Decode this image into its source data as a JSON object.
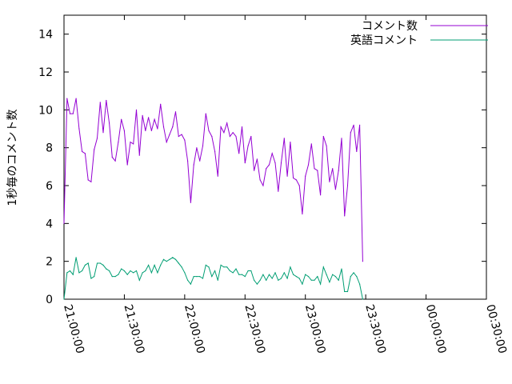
{
  "chart_data": {
    "type": "line",
    "title": "",
    "xlabel": "",
    "ylabel": "1秒毎のコメント数",
    "x_range": [
      "21:00:00",
      "00:30:00"
    ],
    "x_ticks": [
      "21:00:00",
      "21:30:00",
      "22:00:00",
      "22:30:00",
      "23:00:00",
      "23:30:00",
      "00:00:00",
      "00:30:00"
    ],
    "ylim": [
      0,
      15
    ],
    "y_ticks": [
      0,
      2,
      4,
      6,
      8,
      10,
      12,
      14
    ],
    "grid": false,
    "legend_position": "top-right",
    "series": [
      {
        "name": "コメント数",
        "color": "#9400d3",
        "points": [
          [
            "21:00:00",
            4.0
          ],
          [
            "21:01:30",
            10.6
          ],
          [
            "21:03:00",
            9.8
          ],
          [
            "21:04:30",
            9.8
          ],
          [
            "21:06:00",
            10.6
          ],
          [
            "21:07:30",
            9.0
          ],
          [
            "21:09:00",
            7.8
          ],
          [
            "21:10:30",
            7.7
          ],
          [
            "21:12:00",
            6.3
          ],
          [
            "21:13:30",
            6.2
          ],
          [
            "21:15:00",
            7.9
          ],
          [
            "21:16:30",
            8.5
          ],
          [
            "21:18:00",
            10.4
          ],
          [
            "21:19:30",
            8.8
          ],
          [
            "21:21:00",
            10.5
          ],
          [
            "21:22:30",
            9.3
          ],
          [
            "21:24:00",
            7.5
          ],
          [
            "21:25:30",
            7.3
          ],
          [
            "21:27:00",
            8.3
          ],
          [
            "21:28:30",
            9.5
          ],
          [
            "21:30:00",
            8.9
          ],
          [
            "21:31:30",
            7.1
          ],
          [
            "21:33:00",
            8.3
          ],
          [
            "21:34:30",
            8.2
          ],
          [
            "21:36:00",
            10.0
          ],
          [
            "21:37:30",
            7.6
          ],
          [
            "21:39:00",
            9.7
          ],
          [
            "21:40:30",
            8.9
          ],
          [
            "21:42:00",
            9.6
          ],
          [
            "21:43:30",
            8.9
          ],
          [
            "21:45:00",
            9.5
          ],
          [
            "21:46:30",
            9.0
          ],
          [
            "21:48:00",
            10.3
          ],
          [
            "21:49:30",
            9.1
          ],
          [
            "21:51:00",
            8.3
          ],
          [
            "21:52:30",
            8.7
          ],
          [
            "21:54:00",
            9.1
          ],
          [
            "21:55:30",
            9.9
          ],
          [
            "21:57:00",
            8.6
          ],
          [
            "21:58:30",
            8.7
          ],
          [
            "22:00:00",
            8.4
          ],
          [
            "22:01:30",
            7.3
          ],
          [
            "22:03:00",
            5.1
          ],
          [
            "22:04:30",
            7.1
          ],
          [
            "22:06:00",
            8.0
          ],
          [
            "22:07:30",
            7.3
          ],
          [
            "22:09:00",
            8.1
          ],
          [
            "22:10:30",
            9.8
          ],
          [
            "22:12:00",
            8.9
          ],
          [
            "22:13:30",
            8.6
          ],
          [
            "22:15:00",
            7.8
          ],
          [
            "22:16:30",
            6.5
          ],
          [
            "22:18:00",
            9.1
          ],
          [
            "22:19:30",
            8.8
          ],
          [
            "22:21:00",
            9.3
          ],
          [
            "22:22:30",
            8.6
          ],
          [
            "22:24:00",
            8.8
          ],
          [
            "22:25:30",
            8.6
          ],
          [
            "22:27:00",
            7.7
          ],
          [
            "22:28:30",
            9.1
          ],
          [
            "22:30:00",
            7.2
          ],
          [
            "22:31:30",
            8.1
          ],
          [
            "22:33:00",
            8.6
          ],
          [
            "22:34:30",
            6.8
          ],
          [
            "22:36:00",
            7.4
          ],
          [
            "22:37:30",
            6.3
          ],
          [
            "22:39:00",
            6.0
          ],
          [
            "22:40:30",
            6.9
          ],
          [
            "22:42:00",
            7.1
          ],
          [
            "22:43:30",
            7.7
          ],
          [
            "22:45:00",
            7.2
          ],
          [
            "22:46:30",
            5.7
          ],
          [
            "22:48:00",
            7.2
          ],
          [
            "22:49:30",
            8.5
          ],
          [
            "22:51:00",
            6.5
          ],
          [
            "22:52:30",
            8.3
          ],
          [
            "22:54:00",
            6.4
          ],
          [
            "22:55:30",
            6.3
          ],
          [
            "22:57:00",
            6.0
          ],
          [
            "22:58:30",
            4.5
          ],
          [
            "23:00:00",
            6.5
          ],
          [
            "23:01:30",
            7.1
          ],
          [
            "23:03:00",
            8.2
          ],
          [
            "23:04:30",
            6.9
          ],
          [
            "23:06:00",
            6.8
          ],
          [
            "23:07:30",
            5.5
          ],
          [
            "23:09:00",
            8.6
          ],
          [
            "23:10:30",
            8.1
          ],
          [
            "23:12:00",
            6.2
          ],
          [
            "23:13:30",
            6.9
          ],
          [
            "23:15:00",
            5.8
          ],
          [
            "23:16:30",
            6.8
          ],
          [
            "23:18:00",
            8.5
          ],
          [
            "23:19:30",
            4.4
          ],
          [
            "23:21:00",
            6.0
          ],
          [
            "23:22:30",
            8.8
          ],
          [
            "23:24:00",
            9.2
          ],
          [
            "23:25:30",
            7.8
          ],
          [
            "23:27:00",
            9.2
          ],
          [
            "23:28:30",
            2.0
          ]
        ]
      },
      {
        "name": "英語コメント",
        "color": "#009e73",
        "points": [
          [
            "21:00:00",
            0.0
          ],
          [
            "21:01:30",
            1.4
          ],
          [
            "21:03:00",
            1.5
          ],
          [
            "21:04:30",
            1.3
          ],
          [
            "21:06:00",
            2.2
          ],
          [
            "21:07:30",
            1.4
          ],
          [
            "21:09:00",
            1.5
          ],
          [
            "21:10:30",
            1.8
          ],
          [
            "21:12:00",
            1.9
          ],
          [
            "21:13:30",
            1.1
          ],
          [
            "21:15:00",
            1.2
          ],
          [
            "21:16:30",
            1.9
          ],
          [
            "21:18:00",
            1.9
          ],
          [
            "21:19:30",
            1.8
          ],
          [
            "21:21:00",
            1.6
          ],
          [
            "21:22:30",
            1.5
          ],
          [
            "21:24:00",
            1.2
          ],
          [
            "21:25:30",
            1.2
          ],
          [
            "21:27:00",
            1.3
          ],
          [
            "21:28:30",
            1.6
          ],
          [
            "21:30:00",
            1.5
          ],
          [
            "21:31:30",
            1.3
          ],
          [
            "21:33:00",
            1.5
          ],
          [
            "21:34:30",
            1.4
          ],
          [
            "21:36:00",
            1.5
          ],
          [
            "21:37:30",
            1.0
          ],
          [
            "21:39:00",
            1.4
          ],
          [
            "21:40:30",
            1.5
          ],
          [
            "21:42:00",
            1.8
          ],
          [
            "21:43:30",
            1.4
          ],
          [
            "21:45:00",
            1.8
          ],
          [
            "21:46:30",
            1.4
          ],
          [
            "21:48:00",
            1.8
          ],
          [
            "21:49:30",
            2.1
          ],
          [
            "21:51:00",
            2.0
          ],
          [
            "21:52:30",
            2.1
          ],
          [
            "21:54:00",
            2.2
          ],
          [
            "21:55:30",
            2.1
          ],
          [
            "21:57:00",
            1.9
          ],
          [
            "21:58:30",
            1.7
          ],
          [
            "22:00:00",
            1.4
          ],
          [
            "22:01:30",
            1.0
          ],
          [
            "22:03:00",
            0.8
          ],
          [
            "22:04:30",
            1.2
          ],
          [
            "22:06:00",
            1.2
          ],
          [
            "22:07:30",
            1.2
          ],
          [
            "22:09:00",
            1.1
          ],
          [
            "22:10:30",
            1.8
          ],
          [
            "22:12:00",
            1.7
          ],
          [
            "22:13:30",
            1.2
          ],
          [
            "22:15:00",
            1.5
          ],
          [
            "22:16:30",
            1.0
          ],
          [
            "22:18:00",
            1.8
          ],
          [
            "22:19:30",
            1.7
          ],
          [
            "22:21:00",
            1.7
          ],
          [
            "22:22:30",
            1.5
          ],
          [
            "22:24:00",
            1.4
          ],
          [
            "22:25:30",
            1.6
          ],
          [
            "22:27:00",
            1.3
          ],
          [
            "22:28:30",
            1.3
          ],
          [
            "22:30:00",
            1.2
          ],
          [
            "22:31:30",
            1.5
          ],
          [
            "22:33:00",
            1.5
          ],
          [
            "22:34:30",
            1.0
          ],
          [
            "22:36:00",
            0.8
          ],
          [
            "22:37:30",
            1.0
          ],
          [
            "22:39:00",
            1.3
          ],
          [
            "22:40:30",
            1.0
          ],
          [
            "22:42:00",
            1.3
          ],
          [
            "22:43:30",
            1.1
          ],
          [
            "22:45:00",
            1.4
          ],
          [
            "22:46:30",
            1.0
          ],
          [
            "22:48:00",
            1.1
          ],
          [
            "22:49:30",
            1.4
          ],
          [
            "22:51:00",
            1.1
          ],
          [
            "22:52:30",
            1.7
          ],
          [
            "22:54:00",
            1.3
          ],
          [
            "22:55:30",
            1.2
          ],
          [
            "22:57:00",
            1.1
          ],
          [
            "22:58:30",
            0.8
          ],
          [
            "23:00:00",
            1.3
          ],
          [
            "23:01:30",
            1.2
          ],
          [
            "23:03:00",
            1.0
          ],
          [
            "23:04:30",
            1.0
          ],
          [
            "23:06:00",
            1.2
          ],
          [
            "23:07:30",
            0.8
          ],
          [
            "23:09:00",
            1.7
          ],
          [
            "23:10:30",
            1.3
          ],
          [
            "23:12:00",
            0.9
          ],
          [
            "23:13:30",
            1.3
          ],
          [
            "23:15:00",
            1.2
          ],
          [
            "23:16:30",
            1.0
          ],
          [
            "23:18:00",
            1.6
          ],
          [
            "23:19:30",
            0.4
          ],
          [
            "23:21:00",
            0.4
          ],
          [
            "23:22:30",
            1.2
          ],
          [
            "23:24:00",
            1.4
          ],
          [
            "23:25:30",
            1.2
          ],
          [
            "23:27:00",
            0.8
          ],
          [
            "23:28:30",
            0.0
          ]
        ]
      }
    ]
  }
}
